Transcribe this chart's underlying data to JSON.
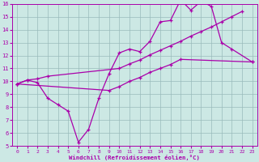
{
  "xlabel": "Windchill (Refroidissement éolien,°C)",
  "xlim": [
    -0.5,
    23.5
  ],
  "ylim": [
    5,
    16
  ],
  "xticks": [
    0,
    1,
    2,
    3,
    4,
    5,
    6,
    7,
    8,
    9,
    10,
    11,
    12,
    13,
    14,
    15,
    16,
    17,
    18,
    19,
    20,
    21,
    22,
    23
  ],
  "yticks": [
    5,
    6,
    7,
    8,
    9,
    10,
    11,
    12,
    13,
    14,
    15,
    16
  ],
  "bg_color": "#cce8e4",
  "line_color": "#aa00aa",
  "grid_color": "#99bbbb",
  "line1_x": [
    0,
    1,
    2,
    3,
    10,
    11,
    12,
    13,
    14,
    15,
    16,
    17,
    18,
    19,
    20,
    21,
    22
  ],
  "line1_y": [
    9.8,
    10.1,
    10.2,
    10.4,
    11.0,
    11.35,
    11.65,
    12.05,
    12.4,
    12.75,
    13.1,
    13.5,
    13.85,
    14.2,
    14.6,
    15.0,
    15.4
  ],
  "line2_x": [
    0,
    1,
    2,
    3,
    4,
    5,
    6,
    7,
    8,
    9,
    10,
    11,
    12,
    13,
    14,
    15,
    16,
    17,
    18,
    19,
    20,
    21,
    23
  ],
  "line2_y": [
    9.8,
    10.1,
    9.9,
    8.7,
    8.2,
    7.7,
    5.3,
    6.3,
    8.7,
    10.6,
    12.2,
    12.5,
    12.3,
    13.1,
    14.6,
    14.7,
    16.3,
    15.5,
    16.2,
    15.8,
    13.0,
    12.5,
    11.5
  ],
  "line3_x": [
    0,
    9,
    10,
    11,
    12,
    13,
    14,
    15,
    16,
    23
  ],
  "line3_y": [
    9.8,
    9.3,
    9.6,
    10.0,
    10.3,
    10.7,
    11.0,
    11.3,
    11.7,
    11.5
  ]
}
